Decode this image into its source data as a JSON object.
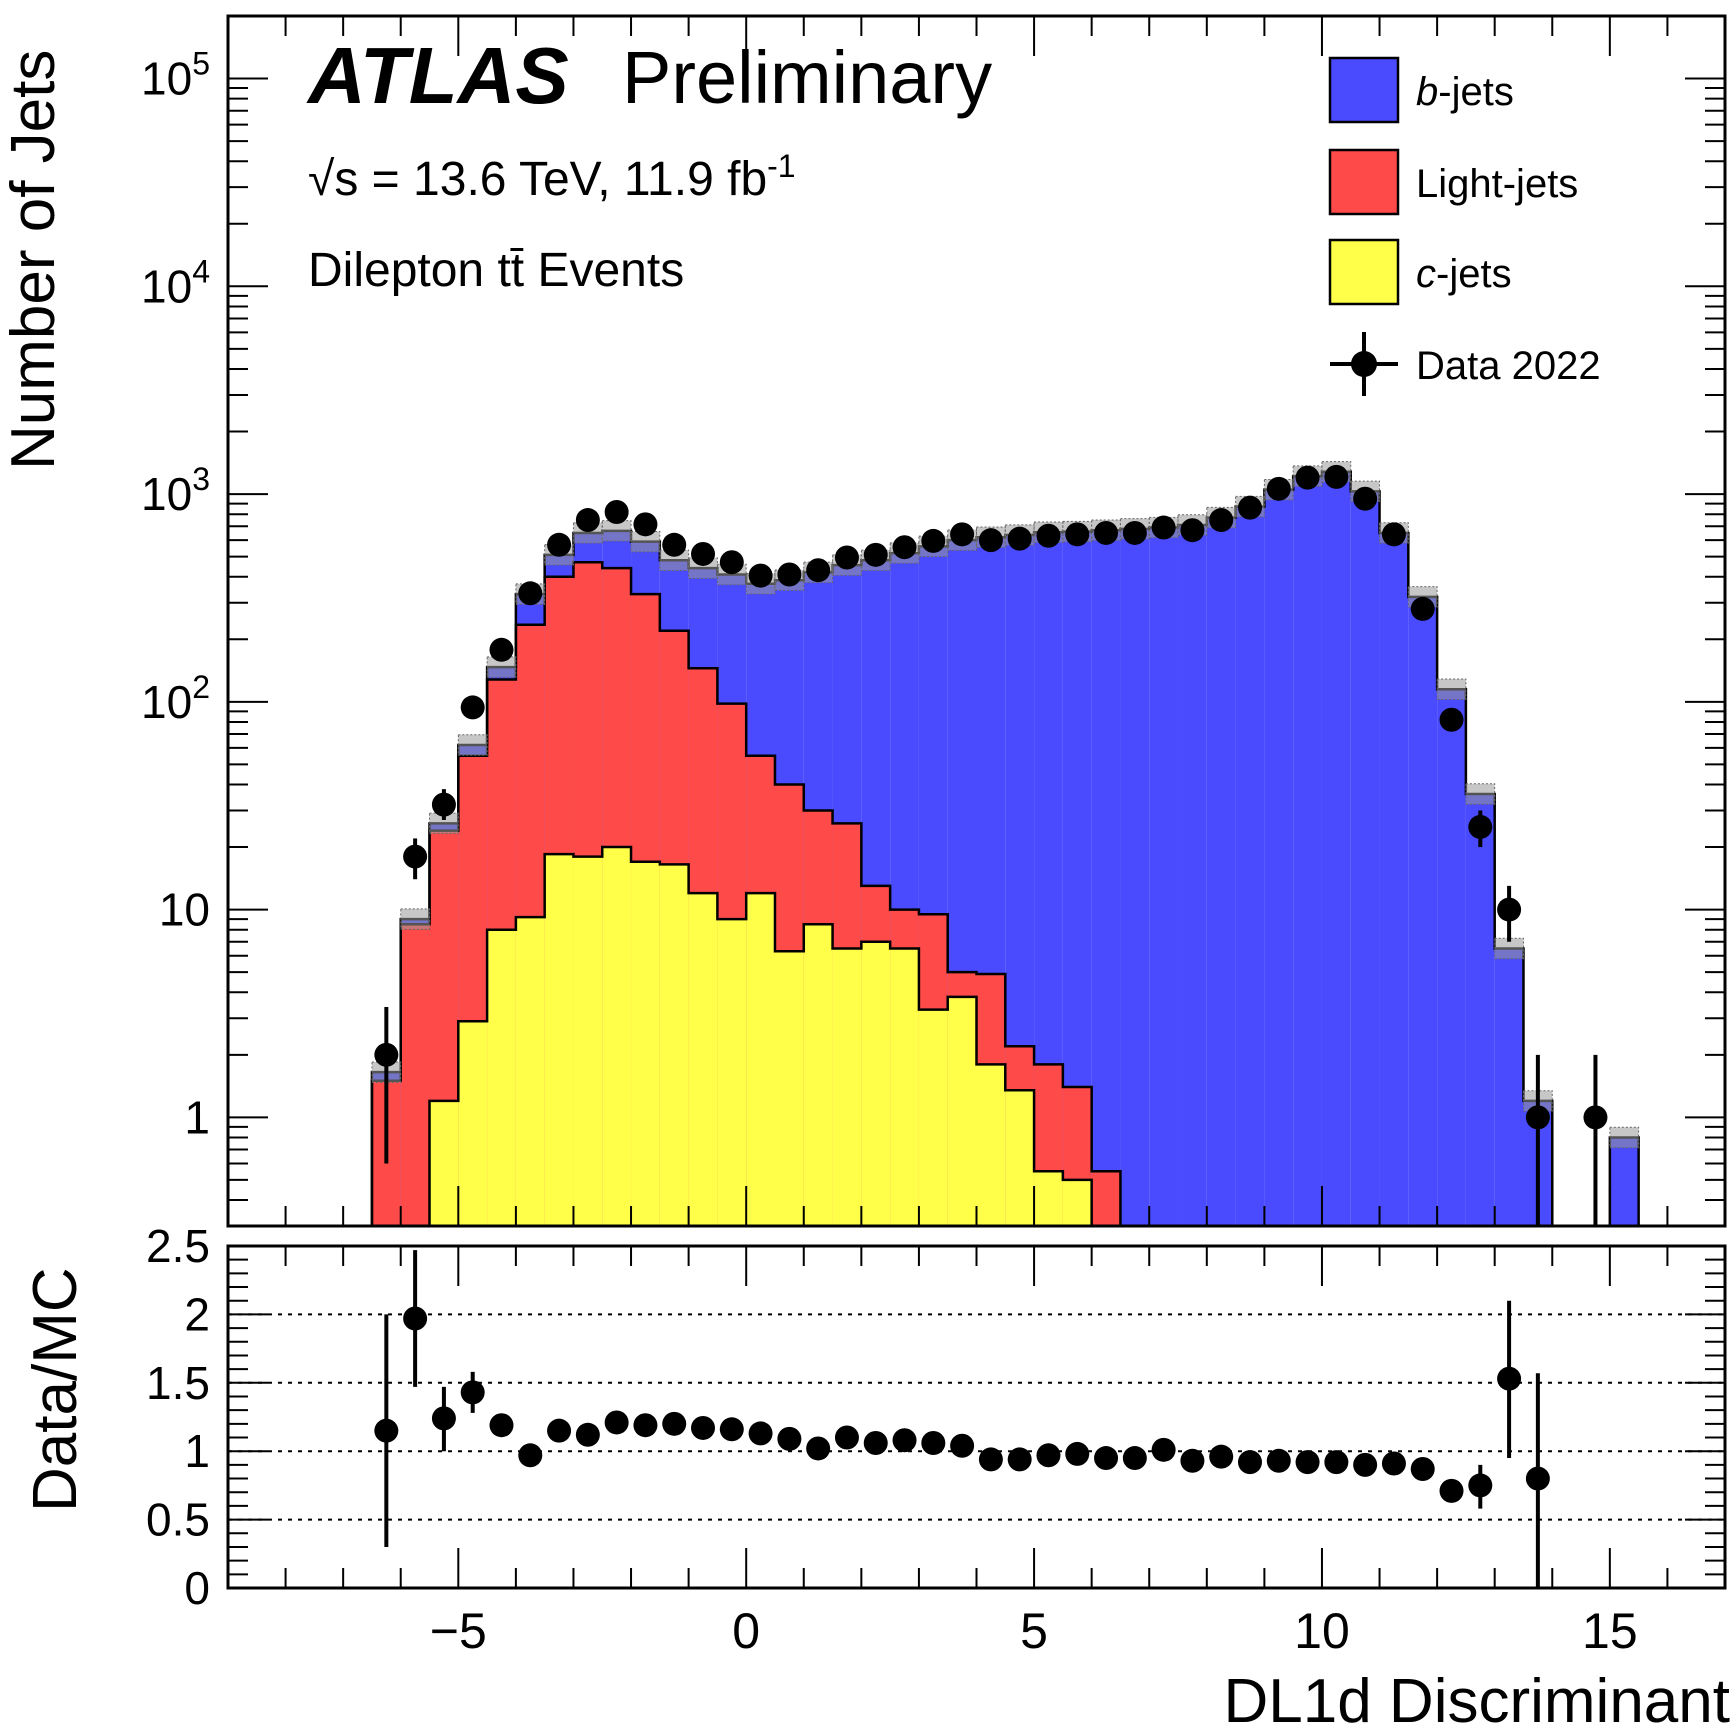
{
  "labels": {
    "atlas": "ATLAS",
    "preliminary": "Preliminary",
    "energy_line": "√s = 13.6 TeV,  11.9 fb",
    "lumi_exp": "-1",
    "selection": "Dilepton tt̄ Events",
    "y_main": "Number of Jets",
    "y_ratio": "Data/MC",
    "x_axis": "DL1d Discriminant"
  },
  "legend": [
    {
      "key": "b",
      "label_italic": "b",
      "label_rest": "-jets",
      "color": "#4a4aff",
      "kind": "box"
    },
    {
      "key": "light",
      "label_italic": "",
      "label_rest": "Light-jets",
      "color": "#ff4a4a",
      "kind": "box"
    },
    {
      "key": "c",
      "label_italic": "c",
      "label_rest": "-jets",
      "color": "#ffff4a",
      "kind": "box"
    },
    {
      "key": "data",
      "label_italic": "",
      "label_rest": "Data 2022",
      "color": "#000000",
      "kind": "marker"
    }
  ],
  "chart_data": {
    "type": "stacked-histogram",
    "x_range": [
      -9,
      17
    ],
    "bin_width": 0.5,
    "main": {
      "y_scale": "log",
      "y_range": [
        0.3,
        200000
      ],
      "y_ticks": [
        {
          "value": 1,
          "label": "1"
        },
        {
          "value": 10,
          "label": "10"
        },
        {
          "value": 100,
          "label": "10",
          "exp": "2"
        },
        {
          "value": 1000,
          "label": "10",
          "exp": "3"
        },
        {
          "value": 10000,
          "label": "10",
          "exp": "4"
        },
        {
          "value": 100000,
          "label": "10",
          "exp": "5"
        }
      ]
    },
    "series": [
      {
        "name": "c-jets",
        "color": "#ffff4a",
        "bins": [
          [
            -5.25,
            1.2
          ],
          [
            -4.75,
            2.9
          ],
          [
            -4.25,
            8.0
          ],
          [
            -3.75,
            9.2
          ],
          [
            -3.25,
            18.5
          ],
          [
            -2.75,
            18.0
          ],
          [
            -2.25,
            20.0
          ],
          [
            -1.75,
            17.0
          ],
          [
            -1.25,
            16.5
          ],
          [
            -0.75,
            12.0
          ],
          [
            -0.25,
            9.0
          ],
          [
            0.25,
            12.0
          ],
          [
            0.75,
            6.3
          ],
          [
            1.25,
            8.5
          ],
          [
            1.75,
            6.5
          ],
          [
            2.25,
            7.0
          ],
          [
            2.75,
            6.5
          ],
          [
            3.25,
            3.3
          ],
          [
            3.75,
            3.8
          ],
          [
            4.25,
            1.8
          ],
          [
            4.75,
            1.35
          ],
          [
            5.25,
            0.55
          ],
          [
            5.75,
            0.5
          ]
        ]
      },
      {
        "name": "Light-jets",
        "color": "#ff4a4a",
        "bins": [
          [
            -6.25,
            1.5
          ],
          [
            -5.75,
            8.5
          ],
          [
            -5.25,
            24
          ],
          [
            -4.75,
            55
          ],
          [
            -4.25,
            128
          ],
          [
            -3.75,
            235
          ],
          [
            -3.25,
            400
          ],
          [
            -2.75,
            470
          ],
          [
            -2.25,
            440
          ],
          [
            -1.75,
            330
          ],
          [
            -1.25,
            220
          ],
          [
            -0.75,
            145
          ],
          [
            -0.25,
            98
          ],
          [
            0.25,
            55
          ],
          [
            0.75,
            40
          ],
          [
            1.25,
            30
          ],
          [
            1.75,
            26
          ],
          [
            2.25,
            13
          ],
          [
            2.75,
            10
          ],
          [
            3.25,
            9.5
          ],
          [
            3.75,
            5.0
          ],
          [
            4.25,
            4.9
          ],
          [
            4.75,
            2.2
          ],
          [
            5.25,
            1.8
          ],
          [
            5.75,
            1.4
          ],
          [
            6.25,
            0.55
          ]
        ]
      },
      {
        "name": "b-jets",
        "color": "#4a4aff",
        "bins": [
          [
            -6.25,
            1.65
          ],
          [
            -5.75,
            9.0
          ],
          [
            -5.25,
            26
          ],
          [
            -4.75,
            62
          ],
          [
            -4.25,
            147
          ],
          [
            -3.75,
            330
          ],
          [
            -3.25,
            510
          ],
          [
            -2.75,
            650
          ],
          [
            -2.25,
            665
          ],
          [
            -1.75,
            590
          ],
          [
            -1.25,
            480
          ],
          [
            -0.75,
            440
          ],
          [
            -0.25,
            410
          ],
          [
            0.25,
            370
          ],
          [
            0.75,
            385
          ],
          [
            1.25,
            420
          ],
          [
            1.75,
            455
          ],
          [
            2.25,
            480
          ],
          [
            2.75,
            520
          ],
          [
            3.25,
            560
          ],
          [
            3.75,
            600
          ],
          [
            4.25,
            620
          ],
          [
            4.75,
            635
          ],
          [
            5.25,
            655
          ],
          [
            5.75,
            660
          ],
          [
            6.25,
            670
          ],
          [
            6.75,
            680
          ],
          [
            7.25,
            690
          ],
          [
            7.75,
            710
          ],
          [
            8.25,
            770
          ],
          [
            8.75,
            870
          ],
          [
            9.25,
            1050
          ],
          [
            9.75,
            1220
          ],
          [
            10.25,
            1280
          ],
          [
            10.75,
            1030
          ],
          [
            11.25,
            650
          ],
          [
            11.75,
            320
          ],
          [
            12.25,
            115
          ],
          [
            12.75,
            36
          ],
          [
            13.25,
            6.5
          ],
          [
            13.75,
            1.2
          ],
          [
            15.25,
            0.8
          ]
        ]
      }
    ],
    "data_points": [
      {
        "x": -6.25,
        "y": 2.0,
        "lo": 0.6,
        "hi": 3.4
      },
      {
        "x": -5.75,
        "y": 18,
        "lo": 14,
        "hi": 22
      },
      {
        "x": -5.25,
        "y": 32,
        "lo": 27,
        "hi": 38
      },
      {
        "x": -4.75,
        "y": 94
      },
      {
        "x": -4.25,
        "y": 178
      },
      {
        "x": -3.75,
        "y": 333
      },
      {
        "x": -3.25,
        "y": 570
      },
      {
        "x": -2.75,
        "y": 750
      },
      {
        "x": -2.25,
        "y": 820
      },
      {
        "x": -1.75,
        "y": 715
      },
      {
        "x": -1.25,
        "y": 570
      },
      {
        "x": -0.75,
        "y": 515
      },
      {
        "x": -0.25,
        "y": 470
      },
      {
        "x": 0.25,
        "y": 405
      },
      {
        "x": 0.75,
        "y": 410
      },
      {
        "x": 1.25,
        "y": 430
      },
      {
        "x": 1.75,
        "y": 495
      },
      {
        "x": 2.25,
        "y": 510
      },
      {
        "x": 2.75,
        "y": 555
      },
      {
        "x": 3.25,
        "y": 595
      },
      {
        "x": 3.75,
        "y": 640
      },
      {
        "x": 4.25,
        "y": 600
      },
      {
        "x": 4.75,
        "y": 610
      },
      {
        "x": 5.25,
        "y": 630
      },
      {
        "x": 5.75,
        "y": 640
      },
      {
        "x": 6.25,
        "y": 650
      },
      {
        "x": 6.75,
        "y": 650
      },
      {
        "x": 7.25,
        "y": 690
      },
      {
        "x": 7.75,
        "y": 670
      },
      {
        "x": 8.25,
        "y": 750
      },
      {
        "x": 8.75,
        "y": 860
      },
      {
        "x": 9.25,
        "y": 1060
      },
      {
        "x": 9.75,
        "y": 1200
      },
      {
        "x": 10.25,
        "y": 1210
      },
      {
        "x": 10.75,
        "y": 950
      },
      {
        "x": 11.25,
        "y": 640
      },
      {
        "x": 11.75,
        "y": 280
      },
      {
        "x": 12.25,
        "y": 82
      },
      {
        "x": 12.75,
        "y": 25,
        "lo": 20,
        "hi": 30
      },
      {
        "x": 13.25,
        "y": 10,
        "lo": 7,
        "hi": 13
      },
      {
        "x": 13.75,
        "y": 1.0,
        "lo": 0.01,
        "hi": 2.0
      },
      {
        "x": 14.75,
        "y": 1.0,
        "lo": 0.01,
        "hi": 2.0
      }
    ],
    "ratio": {
      "y_range": [
        0,
        2.5
      ],
      "y_ticks": [
        {
          "value": 0,
          "label": "0"
        },
        {
          "value": 0.5,
          "label": "0.5"
        },
        {
          "value": 1,
          "label": "1"
        },
        {
          "value": 1.5,
          "label": "1.5"
        },
        {
          "value": 2,
          "label": "2"
        },
        {
          "value": 2.5,
          "label": "2.5"
        }
      ],
      "gridlines": [
        0.5,
        1.0,
        1.5,
        2.0
      ],
      "points": [
        {
          "x": -6.25,
          "y": 1.15,
          "lo": 0.3,
          "hi": 2.0
        },
        {
          "x": -5.75,
          "y": 1.97,
          "lo": 1.47,
          "hi": 2.47
        },
        {
          "x": -5.25,
          "y": 1.24,
          "lo": 1.0,
          "hi": 1.47
        },
        {
          "x": -4.75,
          "y": 1.43,
          "lo": 1.28,
          "hi": 1.58
        },
        {
          "x": -4.25,
          "y": 1.19
        },
        {
          "x": -3.75,
          "y": 0.97
        },
        {
          "x": -3.25,
          "y": 1.15
        },
        {
          "x": -2.75,
          "y": 1.12
        },
        {
          "x": -2.25,
          "y": 1.21
        },
        {
          "x": -1.75,
          "y": 1.19
        },
        {
          "x": -1.25,
          "y": 1.2
        },
        {
          "x": -0.75,
          "y": 1.17
        },
        {
          "x": -0.25,
          "y": 1.16
        },
        {
          "x": 0.25,
          "y": 1.13
        },
        {
          "x": 0.75,
          "y": 1.09
        },
        {
          "x": 1.25,
          "y": 1.02
        },
        {
          "x": 1.75,
          "y": 1.1
        },
        {
          "x": 2.25,
          "y": 1.06
        },
        {
          "x": 2.75,
          "y": 1.08
        },
        {
          "x": 3.25,
          "y": 1.06
        },
        {
          "x": 3.75,
          "y": 1.04
        },
        {
          "x": 4.25,
          "y": 0.94
        },
        {
          "x": 4.75,
          "y": 0.94
        },
        {
          "x": 5.25,
          "y": 0.97
        },
        {
          "x": 5.75,
          "y": 0.98
        },
        {
          "x": 6.25,
          "y": 0.95
        },
        {
          "x": 6.75,
          "y": 0.95
        },
        {
          "x": 7.25,
          "y": 1.01
        },
        {
          "x": 7.75,
          "y": 0.93
        },
        {
          "x": 8.25,
          "y": 0.96
        },
        {
          "x": 8.75,
          "y": 0.92
        },
        {
          "x": 9.25,
          "y": 0.93
        },
        {
          "x": 9.75,
          "y": 0.92
        },
        {
          "x": 10.25,
          "y": 0.92
        },
        {
          "x": 10.75,
          "y": 0.9
        },
        {
          "x": 11.25,
          "y": 0.91
        },
        {
          "x": 11.75,
          "y": 0.87
        },
        {
          "x": 12.25,
          "y": 0.71
        },
        {
          "x": 12.75,
          "y": 0.75,
          "lo": 0.58,
          "hi": 0.9
        },
        {
          "x": 13.25,
          "y": 1.53,
          "lo": 0.95,
          "hi": 2.1
        },
        {
          "x": 13.75,
          "y": 0.8,
          "lo": 0.0,
          "hi": 1.57
        }
      ]
    },
    "x_ticks": [
      {
        "value": -5,
        "label": "−5"
      },
      {
        "value": 0,
        "label": "0"
      },
      {
        "value": 5,
        "label": "5"
      },
      {
        "value": 10,
        "label": "10"
      },
      {
        "value": 15,
        "label": "15"
      }
    ]
  }
}
